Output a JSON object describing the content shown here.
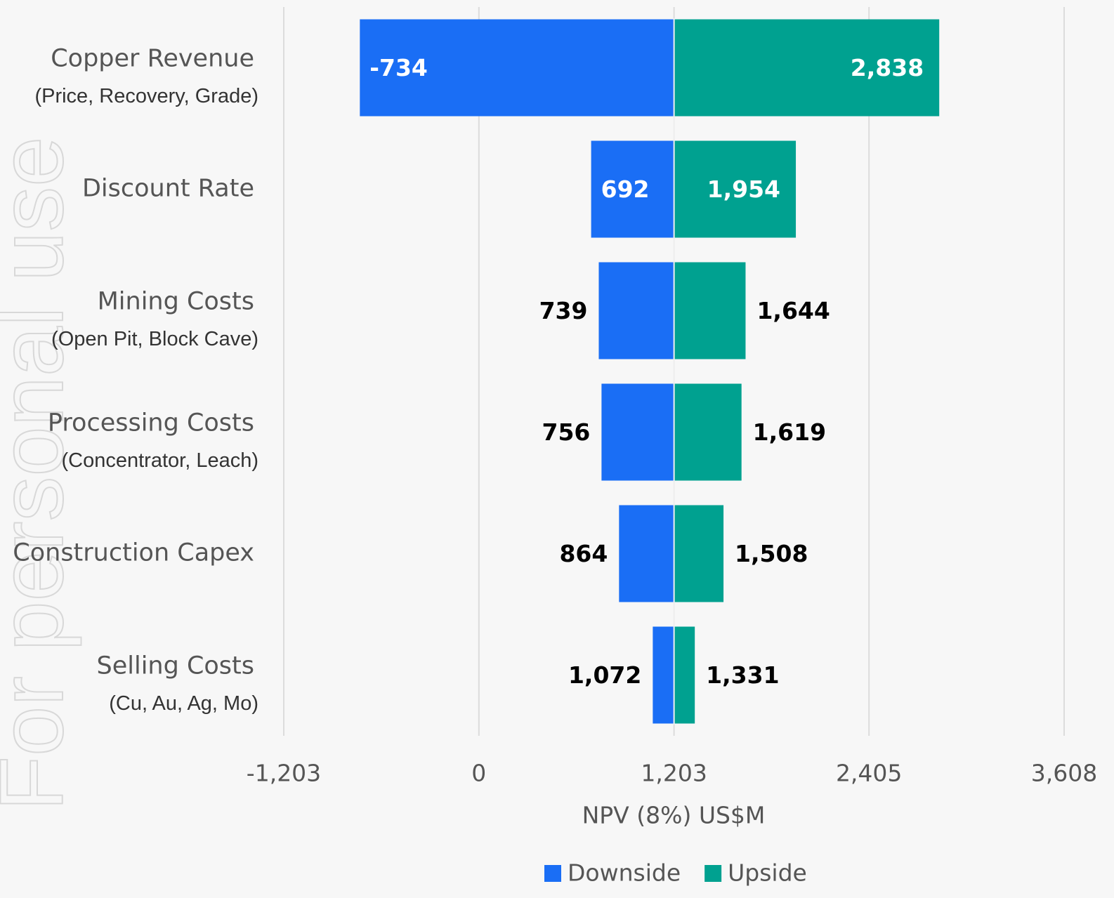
{
  "chart_data": {
    "type": "tornado",
    "watermark": "For personal use",
    "x_label": "NPV (8%) US$M",
    "base": 1203,
    "categories": [
      "Copper Revenue",
      "Discount Rate",
      "Mining Costs",
      "Processing Costs",
      "Construction Capex",
      "Selling Costs"
    ],
    "category_notes": [
      "(Price, Recovery, Grade)",
      null,
      "(Open Pit, Block Cave)",
      "(Concentrator, Leach)",
      null,
      "(Cu, Au, Ag, Mo)"
    ],
    "series": [
      {
        "name": "Downside",
        "color": "#1a6ef5",
        "values": [
          -734,
          692,
          739,
          756,
          864,
          1072
        ],
        "value_labels": [
          "-734",
          "692",
          "739",
          "756",
          "864",
          "1,072"
        ]
      },
      {
        "name": "Upside",
        "color": "#00a190",
        "values": [
          2838,
          1954,
          1644,
          1619,
          1508,
          1331
        ],
        "value_labels": [
          "2,838",
          "1,954",
          "1,644",
          "1,619",
          "1,508",
          "1,331"
        ]
      }
    ],
    "labels_inside": [
      true,
      true,
      false,
      false,
      false,
      false
    ],
    "xlim": [
      -1203,
      3608
    ],
    "xticks": [
      {
        "value": -1203,
        "label": "-1,203"
      },
      0,
      {
        "value": 1203,
        "label": "1,203"
      },
      {
        "value": 2405,
        "label": "2,405"
      },
      {
        "value": 3608,
        "label": "3,608"
      }
    ],
    "grid": true,
    "legend": "bottom"
  }
}
